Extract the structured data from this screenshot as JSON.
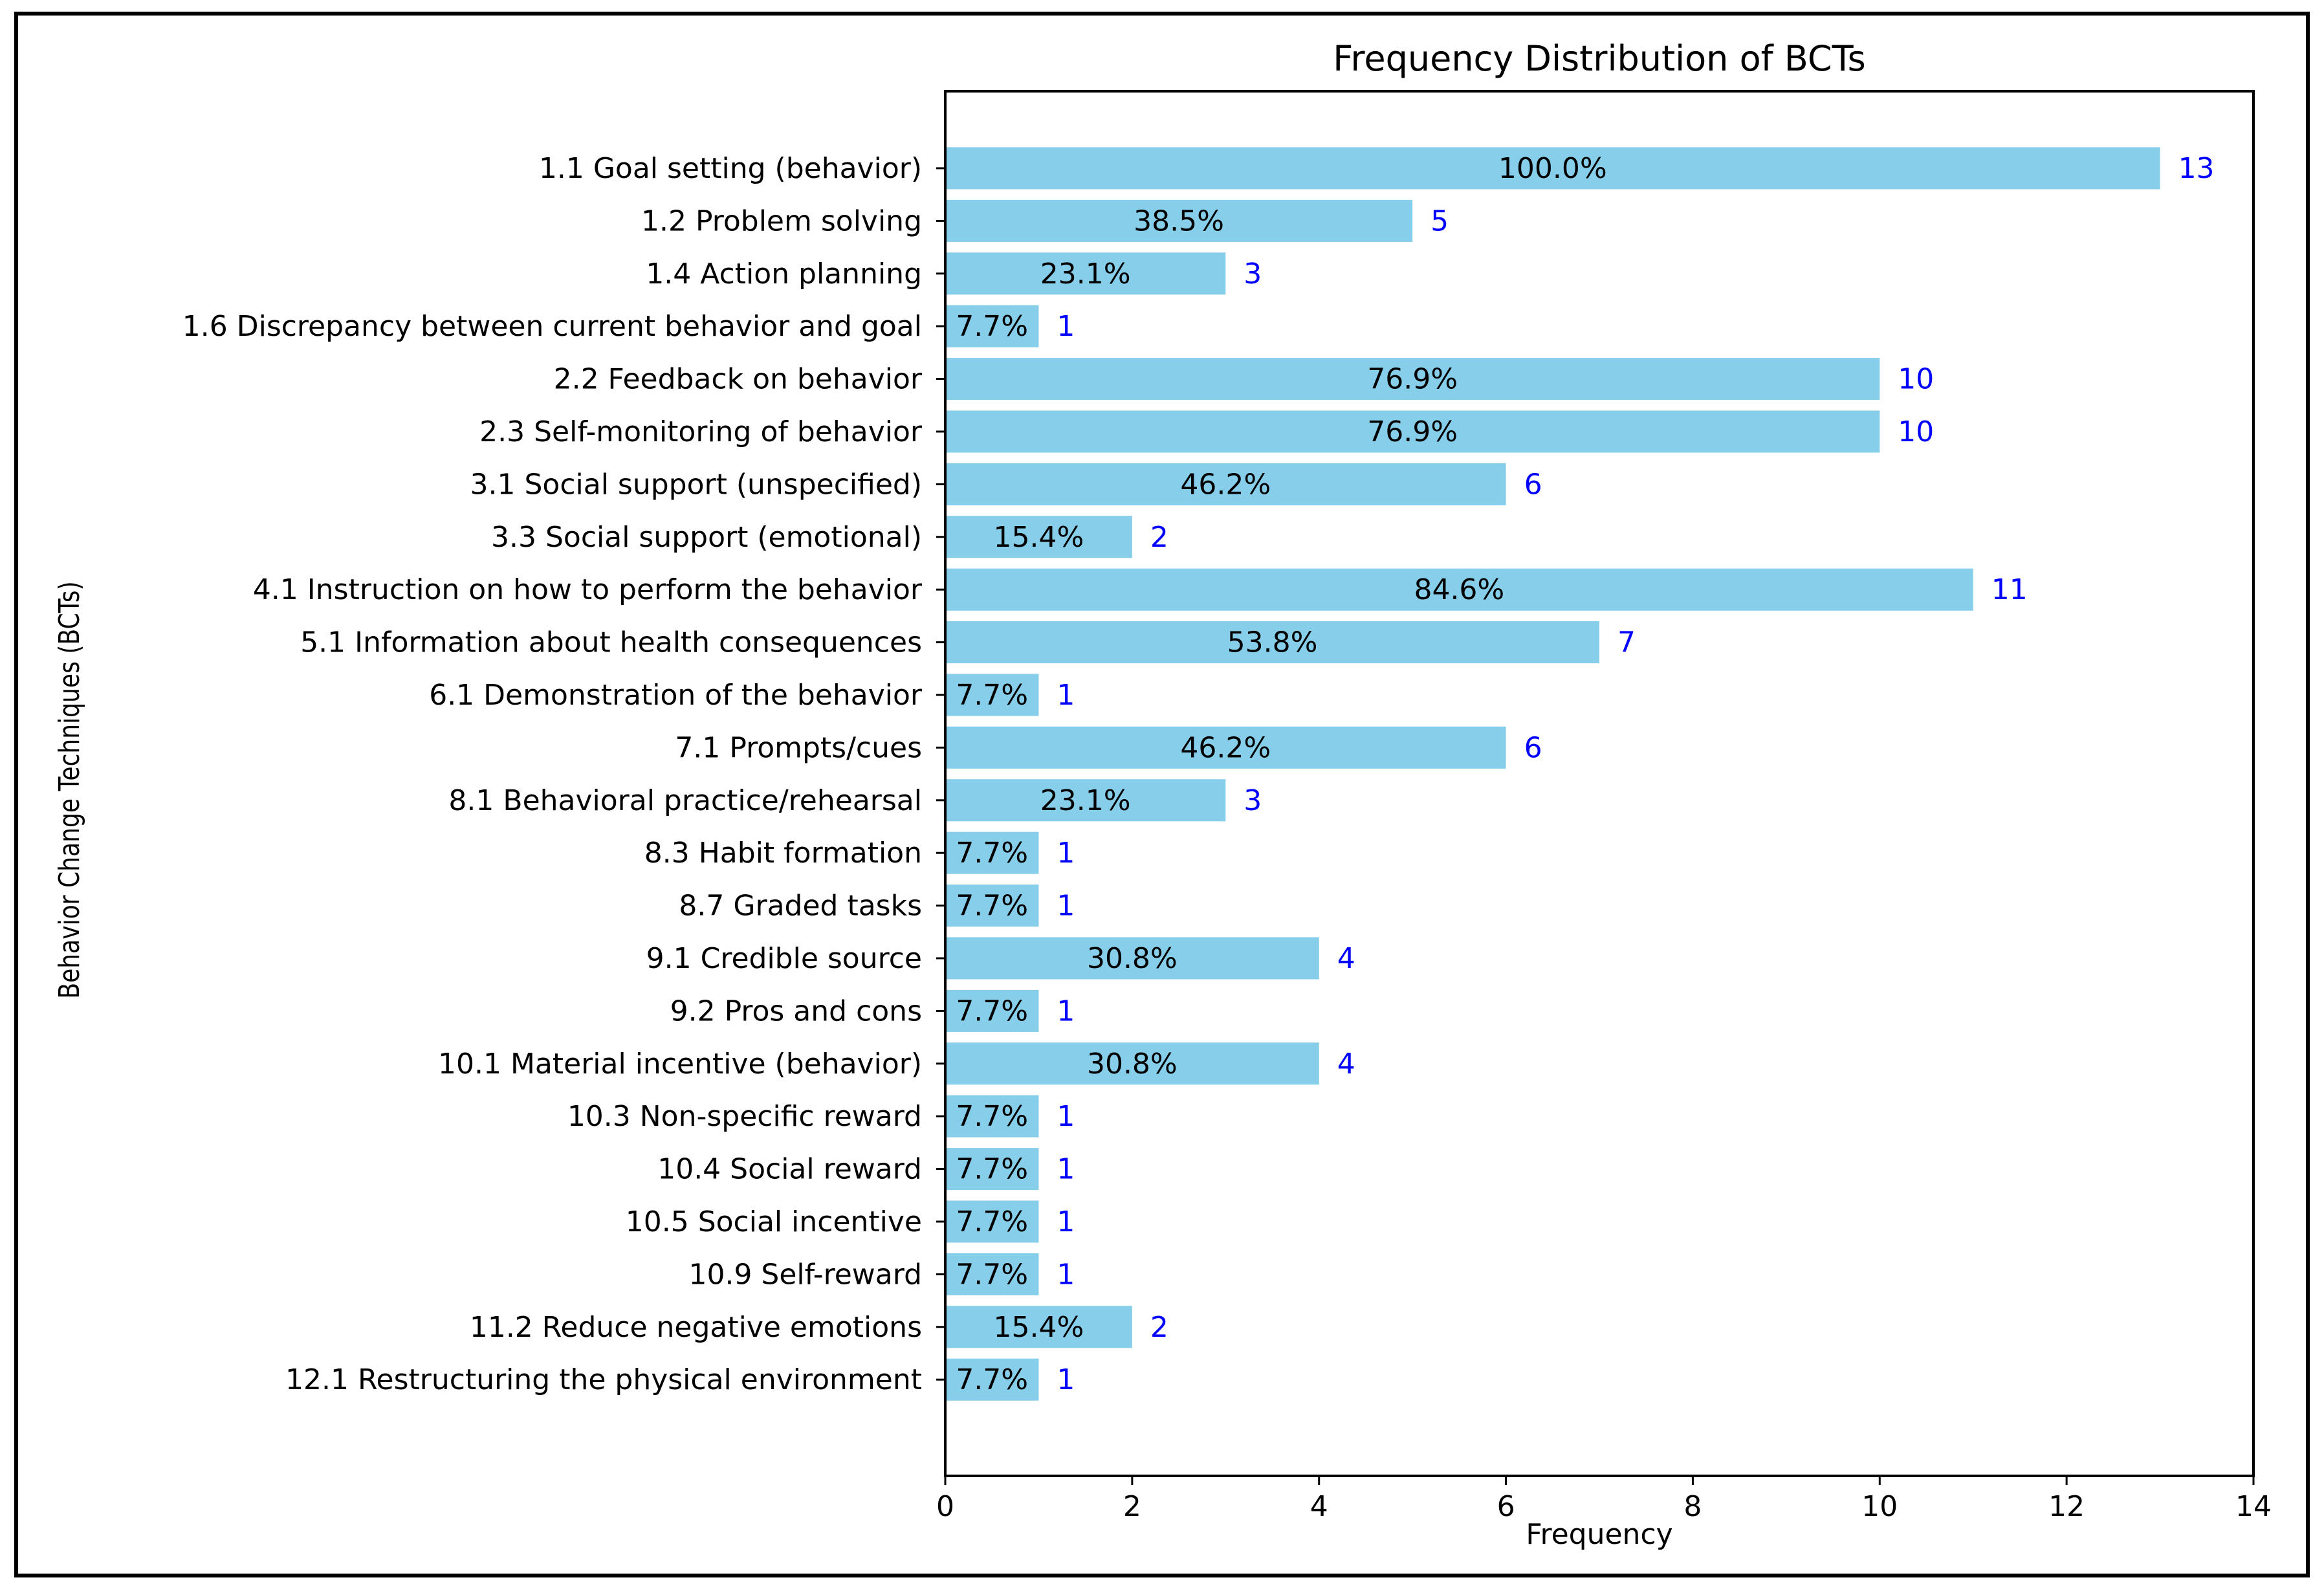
{
  "chart_data": {
    "type": "bar",
    "orientation": "horizontal",
    "title": "Frequency Distribution of BCTs",
    "xlabel": "Frequency",
    "ylabel": "Behavior Change Techniques (BCTs)",
    "xlim": [
      0,
      14
    ],
    "xticks": [
      0,
      2,
      4,
      6,
      8,
      10,
      12,
      14
    ],
    "grid": false,
    "bar_color": "#87CEEB",
    "percent_label_color": "#000000",
    "count_label_color": "#0000FF",
    "categories": [
      "1.1 Goal setting (behavior)",
      "1.2 Problem solving",
      "1.4 Action planning",
      "1.6 Discrepancy between current behavior and goal",
      "2.2 Feedback on behavior",
      "2.3 Self-monitoring of behavior",
      "3.1 Social support (unspecified)",
      "3.3 Social support (emotional)",
      "4.1 Instruction on how to perform the behavior",
      "5.1 Information about health consequences",
      "6.1 Demonstration of the behavior",
      "7.1 Prompts/cues",
      "8.1 Behavioral practice/rehearsal",
      "8.3 Habit formation",
      "8.7 Graded tasks",
      "9.1 Credible source",
      "9.2 Pros and cons",
      "10.1 Material incentive (behavior)",
      "10.3 Non-specific reward",
      "10.4 Social reward",
      "10.5 Social incentive",
      "10.9 Self-reward",
      "11.2 Reduce negative emotions",
      "12.1 Restructuring the physical environment"
    ],
    "values": [
      13,
      5,
      3,
      1,
      10,
      10,
      6,
      2,
      11,
      7,
      1,
      6,
      3,
      1,
      1,
      4,
      1,
      4,
      1,
      1,
      1,
      1,
      2,
      1
    ],
    "percent_labels": [
      "100.0%",
      "38.5%",
      "23.1%",
      "7.7%",
      "76.9%",
      "76.9%",
      "46.2%",
      "15.4%",
      "84.6%",
      "53.8%",
      "7.7%",
      "46.2%",
      "23.1%",
      "7.7%",
      "7.7%",
      "30.8%",
      "7.7%",
      "30.8%",
      "7.7%",
      "7.7%",
      "7.7%",
      "7.7%",
      "15.4%",
      "7.7%"
    ]
  }
}
